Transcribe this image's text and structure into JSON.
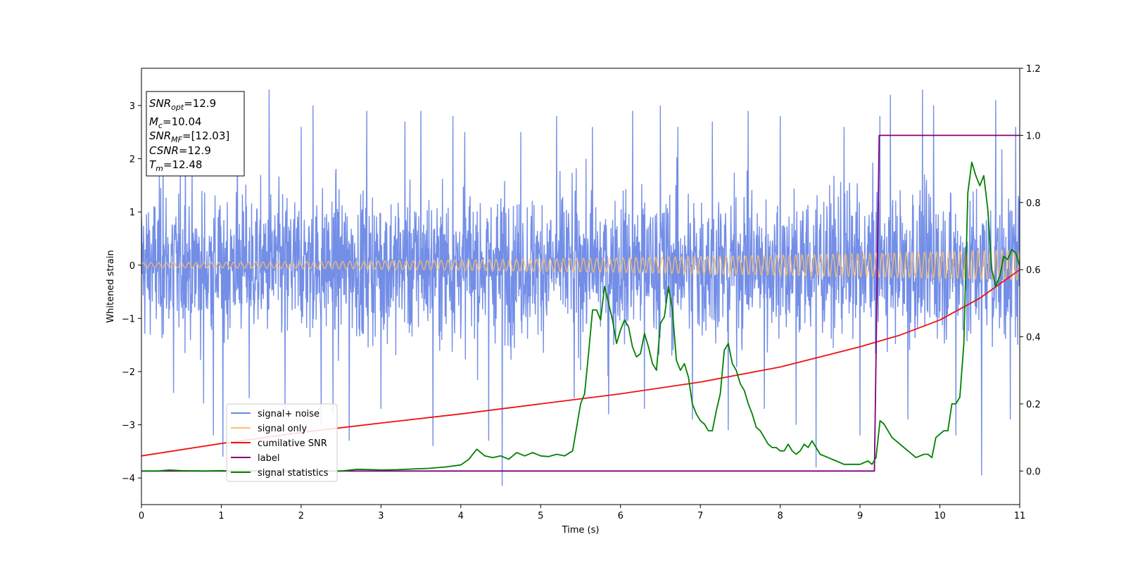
{
  "chart_data": {
    "type": "line",
    "xlabel": "Time (s)",
    "ylabel": "Whitened strain",
    "xlim": [
      0,
      11
    ],
    "ylim_left": [
      -4.5,
      3.7
    ],
    "ylim_right": [
      -0.1,
      1.2
    ],
    "xticks": [
      "0",
      "1",
      "2",
      "3",
      "4",
      "5",
      "6",
      "7",
      "8",
      "9",
      "10",
      "11"
    ],
    "yticks_left": [
      "−4",
      "−3",
      "−2",
      "−1",
      "0",
      "1",
      "2",
      "3"
    ],
    "yticks_right": [
      "0.0",
      "0.2",
      "0.4",
      "0.6",
      "0.8",
      "1.0",
      "1.2"
    ],
    "info_box": {
      "snr_opt": "=12.9",
      "mc": "=10.04",
      "snr_mf": "=[12.03]",
      "csnr": "=12.9",
      "tm": "=12.48"
    },
    "legend": {
      "placement": "lower-left",
      "entries": [
        "signal+ noise",
        "signal only",
        "cumilative SNR",
        "label",
        "signal statistics"
      ]
    },
    "series": [
      {
        "name": "signal+ noise",
        "color": "#6b88e6",
        "axis": "left",
        "description_stats": {
          "amplitude_core": 2.0,
          "max": 3.3,
          "min": -4.2
        },
        "spikes": [
          [
            0.27,
            2.2
          ],
          [
            0.4,
            -2.4
          ],
          [
            0.55,
            2.3
          ],
          [
            0.78,
            -2.6
          ],
          [
            0.9,
            -3.2
          ],
          [
            1.02,
            -3.6
          ],
          [
            1.2,
            2.6
          ],
          [
            1.35,
            -2.5
          ],
          [
            1.6,
            3.3
          ],
          [
            1.8,
            -2.7
          ],
          [
            2.0,
            2.6
          ],
          [
            2.15,
            3.0
          ],
          [
            2.25,
            -3.0
          ],
          [
            2.4,
            -2.8
          ],
          [
            2.6,
            -3.3
          ],
          [
            2.82,
            2.9
          ],
          [
            3.0,
            -2.7
          ],
          [
            3.3,
            2.7
          ],
          [
            3.5,
            2.9
          ],
          [
            3.65,
            -3.4
          ],
          [
            3.9,
            2.8
          ],
          [
            4.05,
            2.5
          ],
          [
            4.35,
            -3.3
          ],
          [
            4.52,
            -4.15
          ],
          [
            4.75,
            2.5
          ],
          [
            5.2,
            2.8
          ],
          [
            5.42,
            -2.5
          ],
          [
            5.65,
            2.6
          ],
          [
            5.85,
            -2.8
          ],
          [
            6.15,
            2.9
          ],
          [
            6.3,
            -2.7
          ],
          [
            6.5,
            3.0
          ],
          [
            6.72,
            2.6
          ],
          [
            6.9,
            -2.9
          ],
          [
            7.15,
            2.7
          ],
          [
            7.35,
            -3.1
          ],
          [
            7.6,
            2.9
          ],
          [
            7.8,
            -2.7
          ],
          [
            8.0,
            2.8
          ],
          [
            8.2,
            -3.0
          ],
          [
            8.45,
            -3.8
          ],
          [
            8.8,
            2.6
          ],
          [
            9.0,
            -3.2
          ],
          [
            9.25,
            2.8
          ],
          [
            9.38,
            3.2
          ],
          [
            9.6,
            -2.9
          ],
          [
            9.78,
            3.3
          ],
          [
            9.92,
            3.0
          ],
          [
            10.2,
            -3.2
          ],
          [
            10.52,
            -3.95
          ],
          [
            10.7,
            3.1
          ],
          [
            10.88,
            -2.9
          ],
          [
            10.95,
            2.6
          ]
        ]
      },
      {
        "name": "signal only",
        "color": "#ffbf66",
        "axis": "left",
        "amplitude_start": 0.05,
        "amplitude_end": 0.28,
        "cycles": 115
      },
      {
        "name": "cumilative SNR",
        "color": "#ee1111",
        "axis": "right",
        "x": [
          0,
          1,
          2,
          3,
          4,
          5,
          6,
          7,
          8,
          9,
          9.5,
          10,
          10.5,
          11
        ],
        "y": [
          0.045,
          0.082,
          0.115,
          0.143,
          0.17,
          0.2,
          0.23,
          0.265,
          0.31,
          0.37,
          0.405,
          0.45,
          0.515,
          0.6
        ]
      },
      {
        "name": "label",
        "color": "#800080",
        "axis": "right",
        "x": [
          0,
          9.18,
          9.24,
          11
        ],
        "y": [
          0.0,
          0.0,
          1.0,
          1.0
        ]
      },
      {
        "name": "signal statistics",
        "color": "#008000",
        "axis": "right",
        "x": [
          0,
          0.2,
          0.35,
          0.5,
          0.8,
          1.0,
          1.2,
          1.5,
          2.0,
          2.5,
          2.7,
          2.9,
          3.0,
          3.2,
          3.4,
          3.6,
          3.8,
          4.0,
          4.1,
          4.2,
          4.3,
          4.4,
          4.5,
          4.6,
          4.7,
          4.8,
          4.9,
          5.0,
          5.1,
          5.2,
          5.3,
          5.4,
          5.5,
          5.55,
          5.6,
          5.65,
          5.7,
          5.75,
          5.8,
          5.85,
          5.9,
          5.95,
          6.0,
          6.05,
          6.1,
          6.15,
          6.2,
          6.25,
          6.3,
          6.35,
          6.4,
          6.45,
          6.5,
          6.55,
          6.6,
          6.65,
          6.7,
          6.75,
          6.8,
          6.85,
          6.9,
          6.95,
          7.0,
          7.05,
          7.1,
          7.15,
          7.2,
          7.25,
          7.3,
          7.35,
          7.4,
          7.45,
          7.5,
          7.55,
          7.6,
          7.65,
          7.7,
          7.75,
          7.8,
          7.85,
          7.9,
          7.95,
          8.0,
          8.05,
          8.1,
          8.15,
          8.2,
          8.25,
          8.3,
          8.35,
          8.4,
          8.5,
          8.6,
          8.7,
          8.8,
          8.9,
          9.0,
          9.1,
          9.15,
          9.2,
          9.25,
          9.3,
          9.35,
          9.4,
          9.5,
          9.6,
          9.7,
          9.8,
          9.85,
          9.9,
          9.95,
          10.0,
          10.05,
          10.1,
          10.15,
          10.2,
          10.25,
          10.3,
          10.35,
          10.4,
          10.45,
          10.5,
          10.55,
          10.6,
          10.65,
          10.7,
          10.75,
          10.8,
          10.85,
          10.9,
          10.95,
          11.0
        ],
        "y": [
          0.0,
          0.0,
          0.003,
          0.001,
          0.0,
          0.001,
          0.0,
          0.001,
          0.0,
          0.0,
          0.005,
          0.004,
          0.003,
          0.004,
          0.006,
          0.008,
          0.012,
          0.018,
          0.035,
          0.065,
          0.045,
          0.04,
          0.045,
          0.035,
          0.055,
          0.045,
          0.055,
          0.045,
          0.043,
          0.05,
          0.045,
          0.06,
          0.2,
          0.23,
          0.35,
          0.48,
          0.48,
          0.45,
          0.55,
          0.5,
          0.45,
          0.38,
          0.42,
          0.45,
          0.43,
          0.37,
          0.34,
          0.35,
          0.41,
          0.37,
          0.32,
          0.3,
          0.44,
          0.46,
          0.55,
          0.48,
          0.33,
          0.3,
          0.32,
          0.28,
          0.2,
          0.17,
          0.15,
          0.14,
          0.12,
          0.12,
          0.18,
          0.23,
          0.36,
          0.38,
          0.32,
          0.3,
          0.26,
          0.24,
          0.2,
          0.17,
          0.13,
          0.12,
          0.1,
          0.08,
          0.07,
          0.07,
          0.06,
          0.06,
          0.08,
          0.06,
          0.05,
          0.06,
          0.08,
          0.07,
          0.09,
          0.05,
          0.04,
          0.03,
          0.02,
          0.02,
          0.02,
          0.03,
          0.02,
          0.04,
          0.15,
          0.14,
          0.12,
          0.1,
          0.08,
          0.06,
          0.04,
          0.05,
          0.05,
          0.04,
          0.1,
          0.11,
          0.12,
          0.12,
          0.2,
          0.2,
          0.22,
          0.38,
          0.83,
          0.92,
          0.88,
          0.85,
          0.88,
          0.78,
          0.6,
          0.55,
          0.58,
          0.64,
          0.63,
          0.66,
          0.65,
          0.61
        ]
      }
    ]
  }
}
